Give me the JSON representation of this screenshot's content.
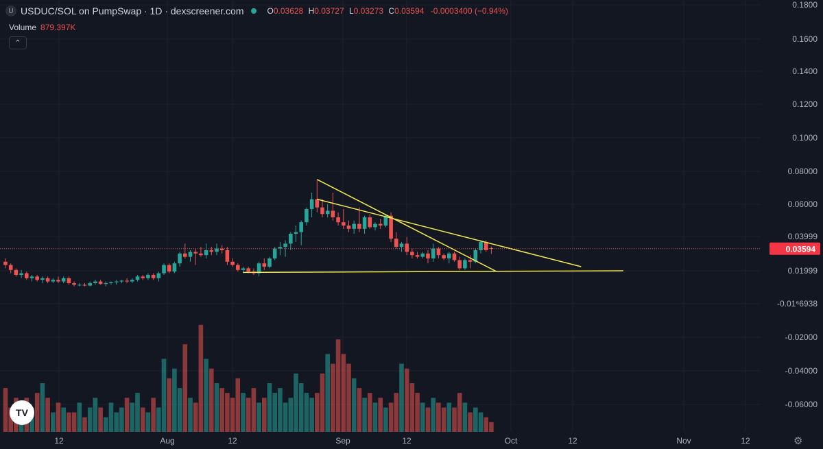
{
  "header": {
    "badge": "U",
    "title": "USDUC/SOL on PumpSwap · 1D · dexscreener.com",
    "ohlc": {
      "o": "0.03628",
      "h": "0.03727",
      "l": "0.03273",
      "c": "0.03594",
      "change": "-0.0003400 (−0.94%)"
    },
    "volume_label": "Volume",
    "volume_value": "879.397K",
    "collapse_icon": "chevron-up-icon"
  },
  "logo_text": "TV",
  "settings_icon": "gear-icon",
  "colors": {
    "up": "#26a69a",
    "down": "#ef5350",
    "trendline": "#f5e94f",
    "price_label_bg": "#f23645",
    "background": "#131722"
  },
  "chart_data": {
    "type": "candlestick",
    "title": "USDUC/SOL on PumpSwap · 1D · dexscreener.com",
    "price_axis_labels": [
      "0.1800",
      "0.1600",
      "0.1400",
      "0.1200",
      "0.1000",
      "0.08000",
      "0.06000",
      "0.03999",
      "0.01999",
      "-0.01⁶6938",
      "-0.02000",
      "-0.04000",
      "-0.06000"
    ],
    "current_price_label": "0.03594",
    "time_axis_labels": [
      "12",
      "Aug",
      "12",
      "Sep",
      "12",
      "Oct",
      "12",
      "Nov",
      "12"
    ],
    "series": [
      {
        "name": "USDUC/SOL",
        "ohlc": [
          [
            0.028,
            0.03,
            0.024,
            0.026
          ],
          [
            0.026,
            0.027,
            0.021,
            0.023
          ],
          [
            0.023,
            0.024,
            0.019,
            0.02
          ],
          [
            0.02,
            0.023,
            0.018,
            0.021
          ],
          [
            0.021,
            0.022,
            0.017,
            0.018
          ],
          [
            0.018,
            0.02,
            0.016,
            0.019
          ],
          [
            0.019,
            0.02,
            0.016,
            0.017
          ],
          [
            0.017,
            0.019,
            0.015,
            0.018
          ],
          [
            0.018,
            0.019,
            0.015,
            0.016
          ],
          [
            0.016,
            0.018,
            0.015,
            0.017
          ],
          [
            0.017,
            0.019,
            0.015,
            0.016
          ],
          [
            0.016,
            0.019,
            0.015,
            0.018
          ],
          [
            0.018,
            0.019,
            0.014,
            0.015
          ],
          [
            0.015,
            0.016,
            0.013,
            0.014
          ],
          [
            0.014,
            0.015,
            0.013,
            0.014
          ],
          [
            0.014,
            0.015,
            0.013,
            0.0135
          ],
          [
            0.0135,
            0.016,
            0.013,
            0.015
          ],
          [
            0.015,
            0.017,
            0.014,
            0.016
          ],
          [
            0.016,
            0.017,
            0.014,
            0.0145
          ],
          [
            0.0145,
            0.016,
            0.013,
            0.015
          ],
          [
            0.015,
            0.016,
            0.014,
            0.0155
          ],
          [
            0.0155,
            0.017,
            0.014,
            0.016
          ],
          [
            0.016,
            0.017,
            0.015,
            0.0165
          ],
          [
            0.0165,
            0.018,
            0.015,
            0.016
          ],
          [
            0.016,
            0.018,
            0.015,
            0.017
          ],
          [
            0.017,
            0.02,
            0.016,
            0.019
          ],
          [
            0.019,
            0.02,
            0.017,
            0.018
          ],
          [
            0.018,
            0.021,
            0.017,
            0.02
          ],
          [
            0.02,
            0.021,
            0.017,
            0.018
          ],
          [
            0.018,
            0.022,
            0.016,
            0.021
          ],
          [
            0.021,
            0.027,
            0.02,
            0.026
          ],
          [
            0.026,
            0.027,
            0.021,
            0.022
          ],
          [
            0.022,
            0.028,
            0.021,
            0.027
          ],
          [
            0.027,
            0.034,
            0.025,
            0.033
          ],
          [
            0.033,
            0.039,
            0.03,
            0.031
          ],
          [
            0.031,
            0.035,
            0.028,
            0.034
          ],
          [
            0.034,
            0.036,
            0.026,
            0.033
          ],
          [
            0.033,
            0.037,
            0.031,
            0.032
          ],
          [
            0.032,
            0.039,
            0.03,
            0.035
          ],
          [
            0.035,
            0.037,
            0.032,
            0.034
          ],
          [
            0.034,
            0.039,
            0.032,
            0.036
          ],
          [
            0.036,
            0.038,
            0.033,
            0.035
          ],
          [
            0.035,
            0.037,
            0.026,
            0.028
          ],
          [
            0.028,
            0.03,
            0.025,
            0.026
          ],
          [
            0.026,
            0.027,
            0.022,
            0.023
          ],
          [
            0.023,
            0.025,
            0.021,
            0.024
          ],
          [
            0.024,
            0.025,
            0.021,
            0.022
          ],
          [
            0.022,
            0.024,
            0.02,
            0.021
          ],
          [
            0.021,
            0.028,
            0.019,
            0.027
          ],
          [
            0.027,
            0.03,
            0.023,
            0.025
          ],
          [
            0.025,
            0.031,
            0.024,
            0.03
          ],
          [
            0.03,
            0.037,
            0.029,
            0.036
          ],
          [
            0.036,
            0.04,
            0.032,
            0.037
          ],
          [
            0.037,
            0.041,
            0.031,
            0.039
          ],
          [
            0.039,
            0.046,
            0.035,
            0.045
          ],
          [
            0.045,
            0.05,
            0.04,
            0.046
          ],
          [
            0.046,
            0.053,
            0.038,
            0.052
          ],
          [
            0.052,
            0.061,
            0.05,
            0.06
          ],
          [
            0.06,
            0.07,
            0.055,
            0.066
          ],
          [
            0.066,
            0.078,
            0.058,
            0.061
          ],
          [
            0.061,
            0.066,
            0.055,
            0.057
          ],
          [
            0.057,
            0.063,
            0.055,
            0.059
          ],
          [
            0.059,
            0.07,
            0.053,
            0.055
          ],
          [
            0.055,
            0.058,
            0.05,
            0.052
          ],
          [
            0.052,
            0.06,
            0.048,
            0.05
          ],
          [
            0.05,
            0.053,
            0.046,
            0.048
          ],
          [
            0.048,
            0.053,
            0.045,
            0.051
          ],
          [
            0.051,
            0.061,
            0.046,
            0.048
          ],
          [
            0.048,
            0.056,
            0.045,
            0.055
          ],
          [
            0.055,
            0.057,
            0.048,
            0.049
          ],
          [
            0.049,
            0.052,
            0.047,
            0.051
          ],
          [
            0.051,
            0.054,
            0.048,
            0.05
          ],
          [
            0.05,
            0.057,
            0.049,
            0.056
          ],
          [
            0.056,
            0.058,
            0.04,
            0.042
          ],
          [
            0.042,
            0.046,
            0.036,
            0.037
          ],
          [
            0.037,
            0.04,
            0.034,
            0.039
          ],
          [
            0.039,
            0.043,
            0.032,
            0.034
          ],
          [
            0.034,
            0.036,
            0.03,
            0.032
          ],
          [
            0.032,
            0.034,
            0.03,
            0.031
          ],
          [
            0.031,
            0.034,
            0.03,
            0.033
          ],
          [
            0.033,
            0.035,
            0.027,
            0.03
          ],
          [
            0.03,
            0.039,
            0.028,
            0.036
          ],
          [
            0.036,
            0.037,
            0.03,
            0.032
          ],
          [
            0.032,
            0.033,
            0.029,
            0.03
          ],
          [
            0.03,
            0.034,
            0.027,
            0.033
          ],
          [
            0.033,
            0.034,
            0.028,
            0.029
          ],
          [
            0.029,
            0.031,
            0.023,
            0.024
          ],
          [
            0.024,
            0.03,
            0.023,
            0.029
          ],
          [
            0.029,
            0.032,
            0.024,
            0.028
          ],
          [
            0.028,
            0.036,
            0.027,
            0.035
          ],
          [
            0.035,
            0.041,
            0.033,
            0.04
          ],
          [
            0.04,
            0.041,
            0.034,
            0.035
          ],
          [
            0.03628,
            0.03727,
            0.03273,
            0.03594
          ]
        ]
      },
      {
        "name": "Volume",
        "values": [
          9,
          5,
          7,
          4,
          7,
          5,
          8,
          10,
          7,
          4,
          6,
          5,
          4,
          4,
          6,
          3,
          5,
          7,
          5,
          3,
          6,
          4,
          5,
          7,
          6,
          8,
          5,
          4,
          7,
          5,
          15,
          11,
          13,
          9,
          18,
          7,
          6,
          22,
          15,
          13,
          10,
          9,
          8,
          7,
          11,
          8,
          7,
          9,
          6,
          7,
          10,
          8,
          9,
          6,
          7,
          12,
          10,
          8,
          7,
          8,
          12,
          16,
          14,
          19,
          16,
          14,
          11,
          9,
          7,
          8,
          6,
          7,
          5,
          6,
          8,
          14,
          13,
          10,
          8,
          6,
          5,
          7,
          6,
          5,
          6,
          5,
          8,
          6,
          4,
          5,
          4,
          3,
          2
        ]
      }
    ],
    "trendlines": [
      {
        "from": [
          59,
          0.078
        ],
        "to": [
          93,
          0.022
        ]
      },
      {
        "from": [
          59,
          0.066
        ],
        "to": [
          109,
          0.025
        ]
      },
      {
        "from": [
          45,
          0.0215
        ],
        "to": [
          117,
          0.0225
        ]
      }
    ]
  }
}
